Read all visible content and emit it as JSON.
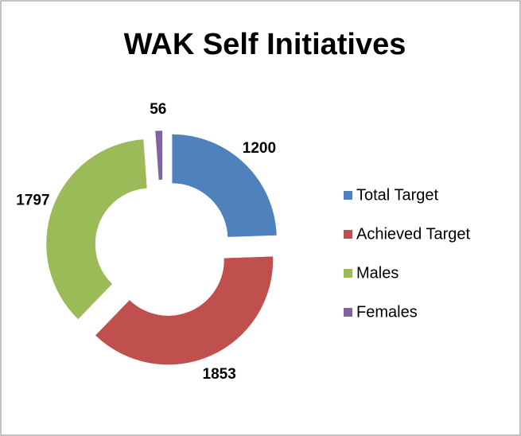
{
  "chart_data": {
    "type": "donut",
    "title": "WAK Self Initiatives",
    "categories": [
      "Total Target",
      "Achieved Target",
      "Males",
      "Females"
    ],
    "values": [
      1200,
      1853,
      1797,
      56
    ],
    "colors": [
      "#4f81bd",
      "#c0504d",
      "#9bbb59",
      "#8064a2"
    ],
    "legend": "right"
  }
}
